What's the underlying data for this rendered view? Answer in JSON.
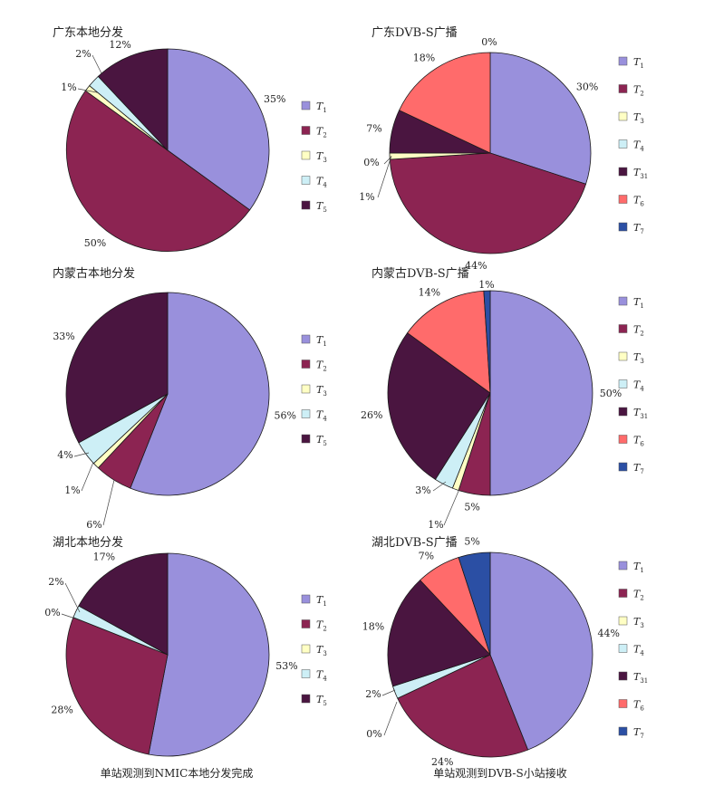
{
  "figure": {
    "caption_left": "单站观测到NMIC本地分发完成",
    "caption_right": "单站观测到DVB-S小站接收"
  },
  "colors": {
    "T1": "#9990dc",
    "T2": "#8c2452",
    "T3": "#ffffc4",
    "T4": "#cdeff6",
    "T5": "#4a1540",
    "T31": "#4a1540",
    "T6": "#ff6b6b",
    "T7": "#2b4fa4"
  },
  "chart_data": [
    {
      "type": "pie",
      "title": "广东本地分发",
      "slices": [
        {
          "key": "T1",
          "label": "T",
          "sub": "1",
          "value": 35,
          "label_text": "35%"
        },
        {
          "key": "T2",
          "label": "T",
          "sub": "2",
          "value": 50,
          "label_text": "50%"
        },
        {
          "key": "T3",
          "label": "T",
          "sub": "3",
          "value": 1,
          "label_text": "1%"
        },
        {
          "key": "T4",
          "label": "T",
          "sub": "4",
          "value": 2,
          "label_text": "2%"
        },
        {
          "key": "T5",
          "label": "T",
          "sub": "5",
          "value": 12,
          "label_text": "12%"
        }
      ]
    },
    {
      "type": "pie",
      "title": "广东DVB-S广播",
      "slices": [
        {
          "key": "T1",
          "label": "T",
          "sub": "1",
          "value": 30,
          "label_text": "30%"
        },
        {
          "key": "T2",
          "label": "T",
          "sub": "2",
          "value": 44,
          "label_text": "44%"
        },
        {
          "key": "T3",
          "label": "T",
          "sub": "3",
          "value": 1,
          "label_text": "1%"
        },
        {
          "key": "T4",
          "label": "T",
          "sub": "4",
          "value": 0,
          "label_text": "0%"
        },
        {
          "key": "T31",
          "label": "T",
          "sub": "31",
          "value": 7,
          "label_text": "7%"
        },
        {
          "key": "T6",
          "label": "T",
          "sub": "6",
          "value": 18,
          "label_text": "18%"
        },
        {
          "key": "T7",
          "label": "T",
          "sub": "7",
          "value": 0,
          "label_text": "0%"
        }
      ]
    },
    {
      "type": "pie",
      "title": "内蒙古本地分发",
      "slices": [
        {
          "key": "T1",
          "label": "T",
          "sub": "1",
          "value": 56,
          "label_text": "56%"
        },
        {
          "key": "T2",
          "label": "T",
          "sub": "2",
          "value": 6,
          "label_text": "6%"
        },
        {
          "key": "T3",
          "label": "T",
          "sub": "3",
          "value": 1,
          "label_text": "1%"
        },
        {
          "key": "T4",
          "label": "T",
          "sub": "4",
          "value": 4,
          "label_text": "4%"
        },
        {
          "key": "T5",
          "label": "T",
          "sub": "5",
          "value": 33,
          "label_text": "33%"
        }
      ]
    },
    {
      "type": "pie",
      "title": "内蒙古DVB-S广播",
      "slices": [
        {
          "key": "T1",
          "label": "T",
          "sub": "1",
          "value": 50,
          "label_text": "50%"
        },
        {
          "key": "T2",
          "label": "T",
          "sub": "2",
          "value": 5,
          "label_text": "5%"
        },
        {
          "key": "T3",
          "label": "T",
          "sub": "3",
          "value": 1,
          "label_text": "1%"
        },
        {
          "key": "T4",
          "label": "T",
          "sub": "4",
          "value": 3,
          "label_text": "3%"
        },
        {
          "key": "T31",
          "label": "T",
          "sub": "31",
          "value": 26,
          "label_text": "26%"
        },
        {
          "key": "T6",
          "label": "T",
          "sub": "6",
          "value": 14,
          "label_text": "14%"
        },
        {
          "key": "T7",
          "label": "T",
          "sub": "7",
          "value": 1,
          "label_text": "1%"
        }
      ]
    },
    {
      "type": "pie",
      "title": "湖北本地分发",
      "slices": [
        {
          "key": "T1",
          "label": "T",
          "sub": "1",
          "value": 53,
          "label_text": "53%"
        },
        {
          "key": "T2",
          "label": "T",
          "sub": "2",
          "value": 28,
          "label_text": "28%"
        },
        {
          "key": "T3",
          "label": "T",
          "sub": "3",
          "value": 0,
          "label_text": "0%"
        },
        {
          "key": "T4",
          "label": "T",
          "sub": "4",
          "value": 2,
          "label_text": "2%"
        },
        {
          "key": "T5",
          "label": "T",
          "sub": "5",
          "value": 17,
          "label_text": "17%"
        }
      ]
    },
    {
      "type": "pie",
      "title": "湖北DVB-S广播",
      "slices": [
        {
          "key": "T1",
          "label": "T",
          "sub": "1",
          "value": 44,
          "label_text": "44%"
        },
        {
          "key": "T2",
          "label": "T",
          "sub": "2",
          "value": 24,
          "label_text": "24%"
        },
        {
          "key": "T3",
          "label": "T",
          "sub": "3",
          "value": 0,
          "label_text": "0%"
        },
        {
          "key": "T4",
          "label": "T",
          "sub": "4",
          "value": 2,
          "label_text": "2%"
        },
        {
          "key": "T31",
          "label": "T",
          "sub": "31",
          "value": 18,
          "label_text": "18%"
        },
        {
          "key": "T6",
          "label": "T",
          "sub": "6",
          "value": 7,
          "label_text": "7%"
        },
        {
          "key": "T7",
          "label": "T",
          "sub": "7",
          "value": 5,
          "label_text": "5%"
        }
      ]
    }
  ]
}
